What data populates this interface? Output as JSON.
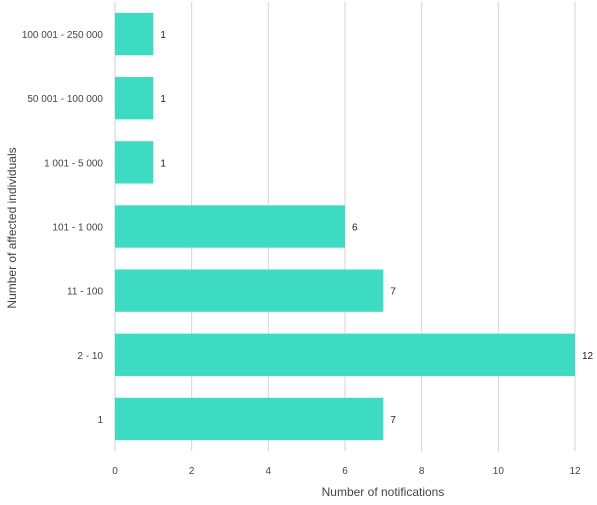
{
  "chart_data": {
    "type": "bar",
    "orientation": "horizontal",
    "categories": [
      "1",
      "2 - 10",
      "11 - 100",
      "101 - 1 000",
      "1 001 - 5 000",
      "50 001 - 100 000",
      "100 001 - 250 000"
    ],
    "values": [
      7,
      12,
      7,
      6,
      1,
      1,
      1
    ],
    "title": "",
    "xlabel": "Number of notifications",
    "ylabel": "Number of affected individuals",
    "xlim": [
      0,
      12
    ],
    "xticks": [
      0,
      2,
      4,
      6,
      8,
      10,
      12
    ],
    "grid": true,
    "legend": "none",
    "bar_color": "#3ddbc1",
    "gridline_color": "#d4d4d4"
  }
}
